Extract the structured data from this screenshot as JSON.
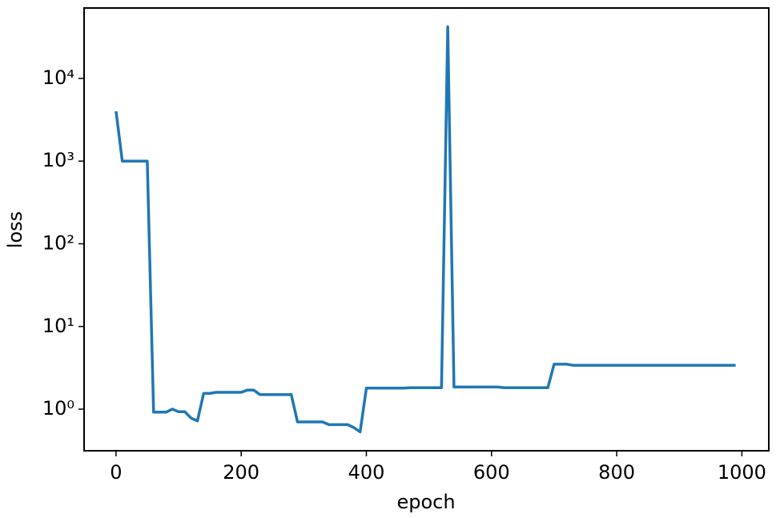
{
  "chart_data": {
    "type": "line",
    "xlabel": "epoch",
    "ylabel": "loss",
    "yscale": "log",
    "x": [
      0,
      10,
      50,
      60,
      80,
      90,
      100,
      110,
      120,
      130,
      140,
      150,
      160,
      200,
      210,
      220,
      230,
      280,
      290,
      330,
      340,
      370,
      380,
      390,
      400,
      460,
      470,
      520,
      530,
      540,
      610,
      620,
      690,
      700,
      720,
      730,
      990
    ],
    "series": [
      {
        "name": "loss",
        "color": "#1f77b4",
        "values": [
          4000,
          1000,
          1000,
          0.92,
          0.92,
          1.0,
          0.93,
          0.93,
          0.78,
          0.72,
          1.55,
          1.55,
          1.6,
          1.6,
          1.7,
          1.7,
          1.5,
          1.5,
          0.7,
          0.7,
          0.65,
          0.65,
          0.6,
          0.53,
          1.8,
          1.8,
          1.82,
          1.82,
          42000,
          1.85,
          1.85,
          1.82,
          1.82,
          3.5,
          3.5,
          3.4,
          3.4
        ]
      }
    ],
    "xlim": [
      -51,
      1043
    ],
    "xticks": [
      0,
      200,
      400,
      600,
      800,
      1000
    ],
    "ylim": [
      0.314,
      71000
    ],
    "yticks": [
      {
        "value": 1,
        "label": "10⁰"
      },
      {
        "value": 10,
        "label": "10¹"
      },
      {
        "value": 100,
        "label": "10²"
      },
      {
        "value": 1000,
        "label": "10³"
      },
      {
        "value": 10000,
        "label": "10⁴"
      }
    ]
  }
}
